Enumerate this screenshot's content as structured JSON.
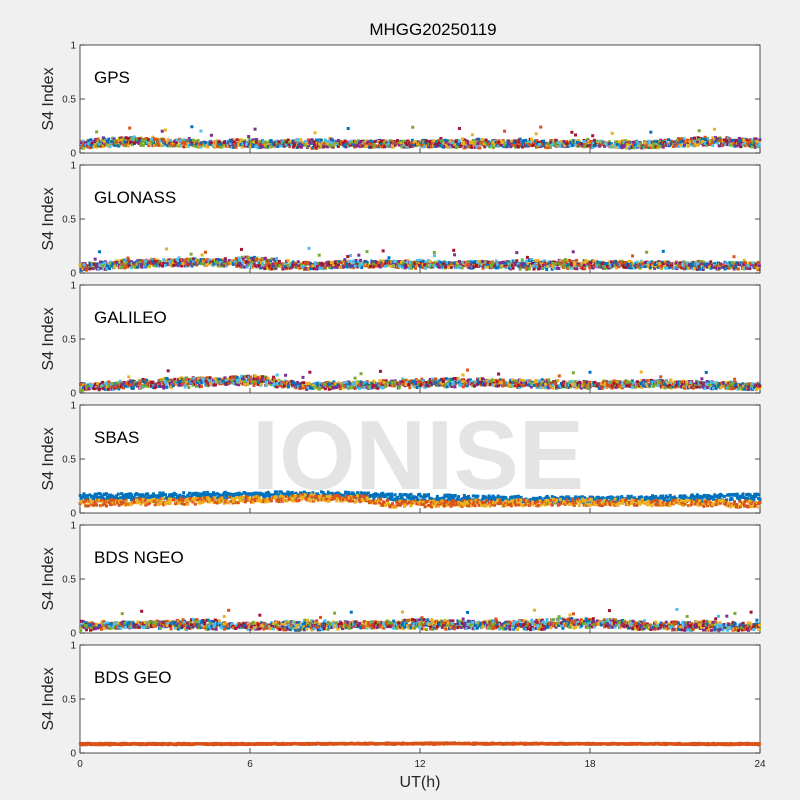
{
  "chart_data": {
    "type": "scatter",
    "title": "MHGG20250119",
    "xlabel": "UT(h)",
    "ylabel": "S4 Index",
    "xlim": [
      0,
      24
    ],
    "ylim": [
      0,
      1
    ],
    "xticks": [
      "0",
      "6",
      "12",
      "18",
      "24"
    ],
    "yticks": [
      "0",
      "0.5",
      "1"
    ],
    "watermark": "IONISE",
    "grid": false,
    "series_colors": [
      "#0072BD",
      "#D95319",
      "#EDB120",
      "#7E2F8E",
      "#77AC30",
      "#4DBEEE",
      "#A2142F"
    ],
    "panels": [
      {
        "label": "GPS",
        "typical_s4": [
          0.03,
          0.14
        ],
        "max_s4": 0.25,
        "series": [
          {
            "values": [
              [
                0,
                0.09
              ],
              [
                2,
                0.12
              ],
              [
                4,
                0.08
              ],
              [
                6,
                0.1
              ],
              [
                8,
                0.07
              ],
              [
                10,
                0.09
              ],
              [
                12,
                0.08
              ],
              [
                14,
                0.1
              ],
              [
                16,
                0.07
              ],
              [
                18,
                0.09
              ],
              [
                20,
                0.08
              ],
              [
                22,
                0.12
              ],
              [
                24,
                0.1
              ]
            ]
          },
          {
            "values": [
              [
                0,
                0.07
              ],
              [
                2,
                0.1
              ],
              [
                4,
                0.09
              ],
              [
                6,
                0.07
              ],
              [
                8,
                0.1
              ],
              [
                10,
                0.08
              ],
              [
                12,
                0.09
              ],
              [
                14,
                0.07
              ],
              [
                16,
                0.1
              ],
              [
                18,
                0.08
              ],
              [
                20,
                0.07
              ],
              [
                22,
                0.1
              ],
              [
                24,
                0.08
              ]
            ]
          }
        ]
      },
      {
        "label": "GLONASS",
        "typical_s4": [
          0.03,
          0.14
        ],
        "max_s4": 0.23,
        "series": [
          {
            "values": [
              [
                0,
                0.06
              ],
              [
                2,
                0.1
              ],
              [
                4,
                0.09
              ],
              [
                6,
                0.12
              ],
              [
                8,
                0.07
              ],
              [
                10,
                0.08
              ],
              [
                12,
                0.09
              ],
              [
                14,
                0.07
              ],
              [
                16,
                0.1
              ],
              [
                18,
                0.09
              ],
              [
                20,
                0.07
              ],
              [
                22,
                0.08
              ],
              [
                24,
                0.06
              ]
            ]
          },
          {
            "values": [
              [
                0,
                0.05
              ],
              [
                2,
                0.08
              ],
              [
                4,
                0.11
              ],
              [
                6,
                0.07
              ],
              [
                8,
                0.06
              ],
              [
                10,
                0.09
              ],
              [
                12,
                0.07
              ],
              [
                14,
                0.08
              ],
              [
                16,
                0.06
              ],
              [
                18,
                0.07
              ],
              [
                20,
                0.08
              ],
              [
                22,
                0.06
              ],
              [
                24,
                0.07
              ]
            ]
          }
        ]
      },
      {
        "label": "GALILEO",
        "typical_s4": [
          0.03,
          0.15
        ],
        "max_s4": 0.22,
        "series": [
          {
            "values": [
              [
                0,
                0.06
              ],
              [
                2,
                0.09
              ],
              [
                4,
                0.12
              ],
              [
                6,
                0.1
              ],
              [
                8,
                0.07
              ],
              [
                10,
                0.08
              ],
              [
                12,
                0.1
              ],
              [
                14,
                0.11
              ],
              [
                16,
                0.07
              ],
              [
                18,
                0.08
              ],
              [
                20,
                0.09
              ],
              [
                22,
                0.08
              ],
              [
                24,
                0.06
              ]
            ]
          },
          {
            "values": [
              [
                0,
                0.05
              ],
              [
                2,
                0.07
              ],
              [
                4,
                0.08
              ],
              [
                6,
                0.14
              ],
              [
                8,
                0.06
              ],
              [
                10,
                0.07
              ],
              [
                12,
                0.08
              ],
              [
                14,
                0.09
              ],
              [
                16,
                0.1
              ],
              [
                18,
                0.07
              ],
              [
                20,
                0.08
              ],
              [
                22,
                0.07
              ],
              [
                24,
                0.06
              ]
            ]
          }
        ]
      },
      {
        "label": "SBAS",
        "typical_s4": [
          0.05,
          0.17
        ],
        "max_s4": 0.2,
        "series": [
          {
            "values": [
              [
                0,
                0.15
              ],
              [
                4,
                0.16
              ],
              [
                8,
                0.17
              ],
              [
                10,
                0.16
              ],
              [
                11,
                0.15
              ],
              [
                14,
                0.13
              ],
              [
                18,
                0.12
              ],
              [
                22,
                0.14
              ],
              [
                24,
                0.15
              ]
            ]
          },
          {
            "values": [
              [
                0,
                0.09
              ],
              [
                4,
                0.11
              ],
              [
                8,
                0.14
              ],
              [
                10,
                0.13
              ],
              [
                11,
                0.08
              ],
              [
                14,
                0.09
              ],
              [
                18,
                0.1
              ],
              [
                22,
                0.09
              ],
              [
                24,
                0.08
              ]
            ]
          }
        ]
      },
      {
        "label": "BDS NGEO",
        "typical_s4": [
          0.03,
          0.12
        ],
        "max_s4": 0.22,
        "series": [
          {
            "values": [
              [
                0,
                0.08
              ],
              [
                2,
                0.07
              ],
              [
                4,
                0.1
              ],
              [
                6,
                0.06
              ],
              [
                8,
                0.09
              ],
              [
                10,
                0.07
              ],
              [
                12,
                0.1
              ],
              [
                14,
                0.08
              ],
              [
                16,
                0.09
              ],
              [
                18,
                0.11
              ],
              [
                20,
                0.07
              ],
              [
                22,
                0.08
              ],
              [
                24,
                0.06
              ]
            ]
          },
          {
            "values": [
              [
                0,
                0.05
              ],
              [
                2,
                0.08
              ],
              [
                4,
                0.06
              ],
              [
                6,
                0.07
              ],
              [
                8,
                0.05
              ],
              [
                10,
                0.08
              ],
              [
                12,
                0.06
              ],
              [
                14,
                0.07
              ],
              [
                16,
                0.06
              ],
              [
                18,
                0.08
              ],
              [
                20,
                0.06
              ],
              [
                22,
                0.05
              ],
              [
                24,
                0.05
              ]
            ]
          }
        ]
      },
      {
        "label": "BDS GEO",
        "typical_s4": [
          0.07,
          0.1
        ],
        "max_s4": 0.1,
        "series": [
          {
            "values": [
              [
                0,
                0.085
              ],
              [
                6,
                0.085
              ],
              [
                12,
                0.085
              ],
              [
                18,
                0.085
              ],
              [
                24,
                0.085
              ]
            ]
          },
          {
            "values": [
              [
                0,
                0.08
              ],
              [
                6,
                0.082
              ],
              [
                12,
                0.09
              ],
              [
                18,
                0.085
              ],
              [
                24,
                0.08
              ]
            ]
          }
        ]
      }
    ]
  }
}
